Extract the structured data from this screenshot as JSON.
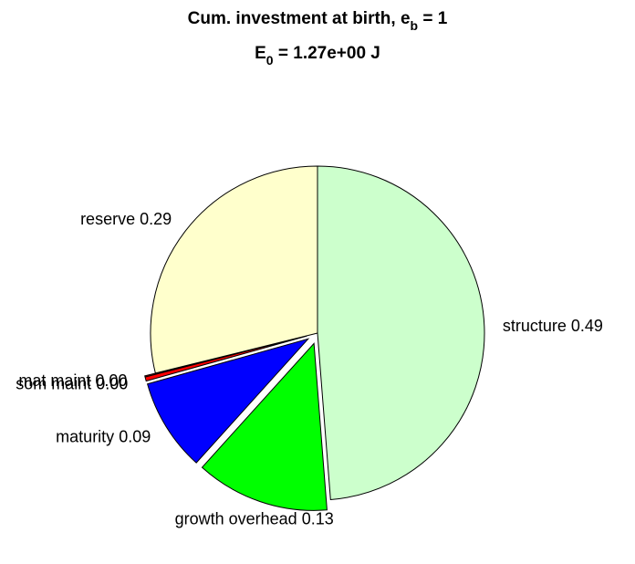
{
  "chart_data": {
    "type": "pie",
    "title": {
      "text": "Cum. investment at birth, e",
      "sub": "b",
      "rest": " = 1"
    },
    "subtitle": {
      "text": "E",
      "sub": "0",
      "rest": " = 1.27e+00 J"
    },
    "categories": [
      "structure",
      "growth overhead",
      "maturity",
      "som maint",
      "mat maint",
      "reserve"
    ],
    "values": [
      0.49,
      0.13,
      0.09,
      0.004,
      0.001,
      0.29
    ],
    "value_labels": [
      "0.49",
      "0.13",
      "0.09",
      "0.00",
      "0.00",
      "0.29"
    ],
    "colors": [
      "#ccffcc",
      "#00ff00",
      "#0000ff",
      "#ff0000",
      "#cc0000",
      "#ffffcc"
    ],
    "explode": [
      0,
      1,
      1,
      1,
      1,
      0
    ]
  }
}
